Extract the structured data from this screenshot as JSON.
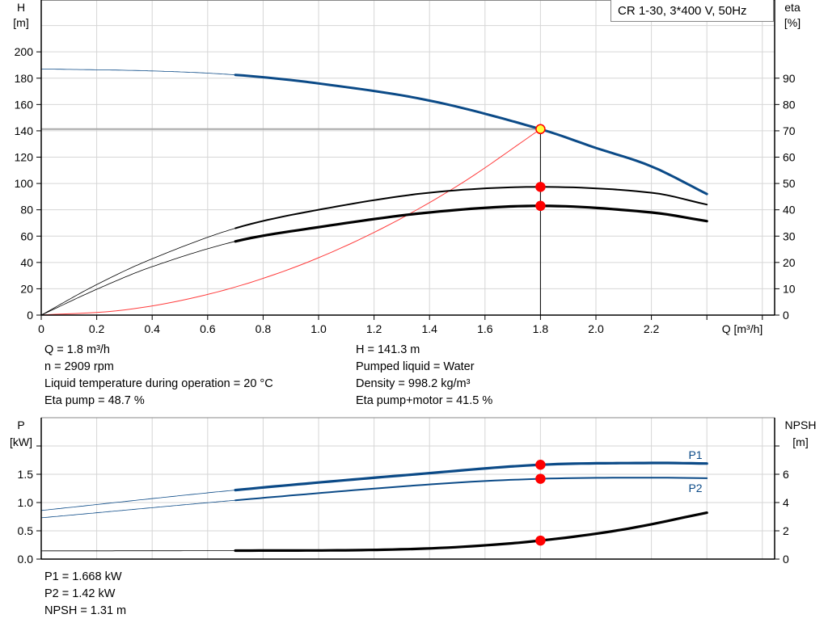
{
  "chart_data": [
    {
      "type": "line",
      "title": "CR 1-30, 3*400 V, 50Hz",
      "xlabel": "Q [m³/h]",
      "ylabel_left": [
        "H",
        "[m]"
      ],
      "ylabel_right": [
        "eta",
        "[%]"
      ],
      "xlim": [
        0,
        2.6
      ],
      "ylim_left": [
        0,
        220
      ],
      "ylim_right": [
        0,
        110
      ],
      "x_ticks": [
        "0",
        "0.2",
        "0.4",
        "0.6",
        "0.8",
        "1.0",
        "1.2",
        "1.4",
        "1.6",
        "1.8",
        "2.0",
        "2.2"
      ],
      "y_ticks_left": [
        "0",
        "20",
        "40",
        "60",
        "80",
        "100",
        "120",
        "140",
        "160",
        "180",
        "200"
      ],
      "y_ticks_right": [
        "0",
        "10",
        "20",
        "30",
        "40",
        "50",
        "60",
        "70",
        "80",
        "90"
      ],
      "grid": true,
      "series": [
        {
          "key": "H",
          "axis": "left",
          "color": "#0b4a87",
          "x": [
            0,
            0.4,
            0.7,
            1.0,
            1.4,
            1.8,
            2.0,
            2.2,
            2.4
          ],
          "y": [
            187,
            185.5,
            182.5,
            176,
            163,
            141.3,
            127,
            113,
            92
          ]
        },
        {
          "key": "eta_pump",
          "axis": "right",
          "color": "#000000",
          "x": [
            0,
            0.2,
            0.4,
            0.7,
            1.0,
            1.4,
            1.8,
            2.2,
            2.4
          ],
          "y": [
            0,
            11.6,
            21.4,
            33,
            40,
            46.5,
            48.7,
            46.5,
            42
          ]
        },
        {
          "key": "eta_pump_motor",
          "axis": "right",
          "color": "#000000",
          "x": [
            0,
            0.2,
            0.4,
            0.7,
            1.0,
            1.4,
            1.8,
            2.2,
            2.4
          ],
          "y": [
            0,
            9.8,
            18.4,
            28,
            33.4,
            39,
            41.5,
            39,
            35.7
          ]
        },
        {
          "key": "system_curve",
          "axis": "left",
          "color": "#ff3b3b",
          "x": [
            0,
            0.3,
            0.6,
            0.9,
            1.2,
            1.5,
            1.8
          ],
          "y": [
            0,
            3.9,
            15.7,
            35.3,
            62.8,
            98.1,
            141.3
          ]
        }
      ],
      "operating_point": {
        "Q": 1.8,
        "H": 141.3,
        "eta_pump": 48.7,
        "eta_pump_motor": 41.5
      }
    },
    {
      "type": "line",
      "ylabel_left": [
        "P",
        "[kW]"
      ],
      "ylabel_right": [
        "NPSH",
        "[m]"
      ],
      "xlim": [
        0,
        2.6
      ],
      "ylim_left": [
        0,
        2.0
      ],
      "ylim_right": [
        0,
        8
      ],
      "y_ticks_left": [
        "0.0",
        "0.5",
        "1.0",
        "1.5"
      ],
      "y_ticks_right": [
        "0",
        "2",
        "4",
        "6"
      ],
      "grid": true,
      "series": [
        {
          "key": "P1",
          "name": "P1",
          "axis": "left",
          "color": "#0b4a87",
          "x": [
            0,
            0.7,
            1.4,
            1.8,
            2.2,
            2.4
          ],
          "y": [
            0.86,
            1.22,
            1.52,
            1.668,
            1.7,
            1.69
          ]
        },
        {
          "key": "P2",
          "name": "P2",
          "axis": "left",
          "color": "#0b4a87",
          "x": [
            0,
            0.7,
            1.4,
            1.8,
            2.2,
            2.4
          ],
          "y": [
            0.73,
            1.04,
            1.32,
            1.42,
            1.44,
            1.43
          ]
        },
        {
          "key": "NPSH",
          "axis": "right",
          "color": "#000000",
          "x": [
            0,
            0.7,
            1.2,
            1.5,
            1.8,
            2.1,
            2.4
          ],
          "y": [
            0.58,
            0.6,
            0.65,
            0.85,
            1.31,
            2.1,
            3.28
          ]
        }
      ],
      "operating_point": {
        "Q": 1.8,
        "P1": 1.668,
        "P2": 1.42,
        "NPSH": 1.31
      }
    }
  ],
  "info": {
    "left": [
      "Q = 1.8 m³/h",
      "n = 2909 rpm",
      "Liquid temperature during operation = 20 °C",
      "Eta pump = 48.7 %"
    ],
    "right": [
      "H = 141.3 m",
      "Pumped liquid = Water",
      "Density = 998.2 kg/m³",
      "Eta pump+motor = 41.5 %"
    ],
    "power": [
      "P1 = 1.668 kW",
      "P2 = 1.42 kW",
      "NPSH = 1.31 m"
    ]
  },
  "colors": {
    "curve_blue": "#0b4a87",
    "point_red": "#ff0000",
    "point_yellow": "#ffff40",
    "grid": "#d6d6d6"
  }
}
